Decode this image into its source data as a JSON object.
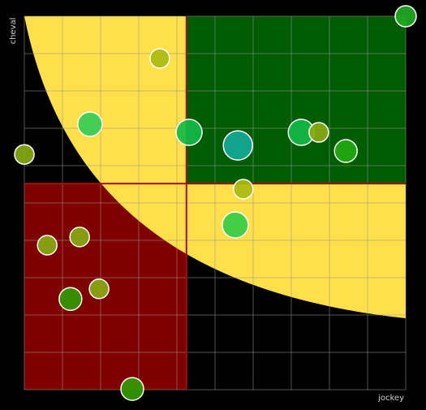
{
  "chart_data": {
    "type": "scatter",
    "x_label": "jockey",
    "y_label": "cheval",
    "xlim": [
      0,
      100
    ],
    "ylim": [
      0,
      100
    ],
    "xticks": [
      0,
      10,
      20,
      30,
      40,
      50,
      60,
      70,
      80,
      90,
      100
    ],
    "yticks": [
      0,
      10,
      20,
      30,
      40,
      50,
      60,
      70,
      80,
      90,
      100
    ],
    "grid": true,
    "x_threshold": 42.5,
    "y_threshold": 55.2,
    "quadrant_colors": {
      "low": "#800000",
      "mid": "#ffe04a",
      "high": "#005c00"
    },
    "threshold_color": "#a01010",
    "x": [
      100,
      35.5,
      17.2,
      0,
      43.2,
      56.0,
      72.6,
      77.2,
      84.3,
      57.4,
      55.3,
      6.0,
      14.5,
      12.1,
      19.6,
      28.3
    ],
    "values": [
      100,
      88.7,
      71.1,
      63.0,
      68.9,
      65.4,
      68.9,
      68.9,
      63.9,
      53.7,
      44.1,
      38.7,
      40.9,
      24.3,
      27.0,
      0.2
    ],
    "sizes": [
      13,
      12,
      15,
      12,
      16,
      18,
      16,
      12,
      14,
      12,
      16,
      12,
      12,
      14,
      12,
      14
    ],
    "colors": [
      "#22aa22",
      "#aabb11",
      "#33cc55",
      "#88aa11",
      "#11bb44",
      "#11aa99",
      "#11bb44",
      "#88aa11",
      "#22aa11",
      "#aabb11",
      "#33cc44",
      "#88aa11",
      "#88aa11",
      "#339900",
      "#88aa11",
      "#339900"
    ]
  }
}
